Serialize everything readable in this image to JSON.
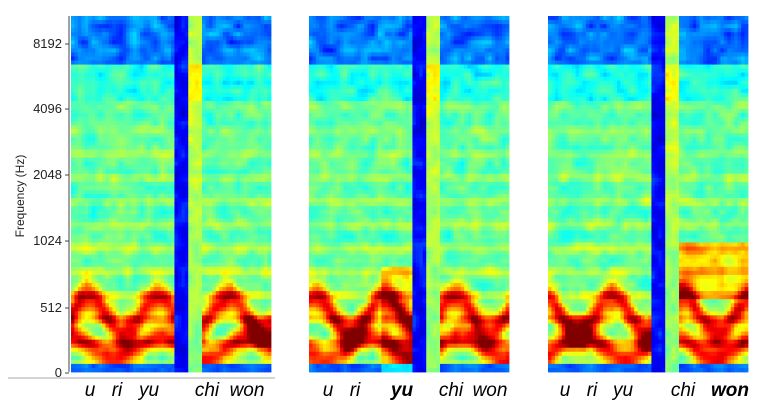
{
  "chart_data": [
    {
      "type": "heatmap",
      "title": "",
      "xlabel": "",
      "ylabel": "Frequency (Hz)",
      "y_scale": "log2",
      "y_ticks": [
        "0",
        "512",
        "1024",
        "2048",
        "4096",
        "8192"
      ],
      "x_labels": [
        {
          "text": "u",
          "emphasis": false
        },
        {
          "text": "ri",
          "emphasis": false
        },
        {
          "text": "yu",
          "emphasis": false
        },
        {
          "text": "chi",
          "emphasis": false
        },
        {
          "text": "won",
          "emphasis": false
        }
      ],
      "colormap": "jet"
    },
    {
      "type": "heatmap",
      "title": "",
      "xlabel": "",
      "ylabel": "",
      "y_scale": "log2",
      "y_ticks": [],
      "x_labels": [
        {
          "text": "u",
          "emphasis": false
        },
        {
          "text": "ri",
          "emphasis": false
        },
        {
          "text": "yu",
          "emphasis": true
        },
        {
          "text": "chi",
          "emphasis": false
        },
        {
          "text": "won",
          "emphasis": false
        }
      ],
      "colormap": "jet"
    },
    {
      "type": "heatmap",
      "title": "",
      "xlabel": "",
      "ylabel": "",
      "y_scale": "log2",
      "y_ticks": [],
      "x_labels": [
        {
          "text": "u",
          "emphasis": false
        },
        {
          "text": "ri",
          "emphasis": false
        },
        {
          "text": "yu",
          "emphasis": false
        },
        {
          "text": "chi",
          "emphasis": false
        },
        {
          "text": "won",
          "emphasis": true
        }
      ],
      "colormap": "jet"
    }
  ],
  "colors": {
    "colormap_stops": [
      "#00008f",
      "#0000ff",
      "#0080ff",
      "#00ffff",
      "#80ff80",
      "#ffff00",
      "#ff8000",
      "#ff0000",
      "#800000"
    ],
    "axis": "#444444"
  }
}
